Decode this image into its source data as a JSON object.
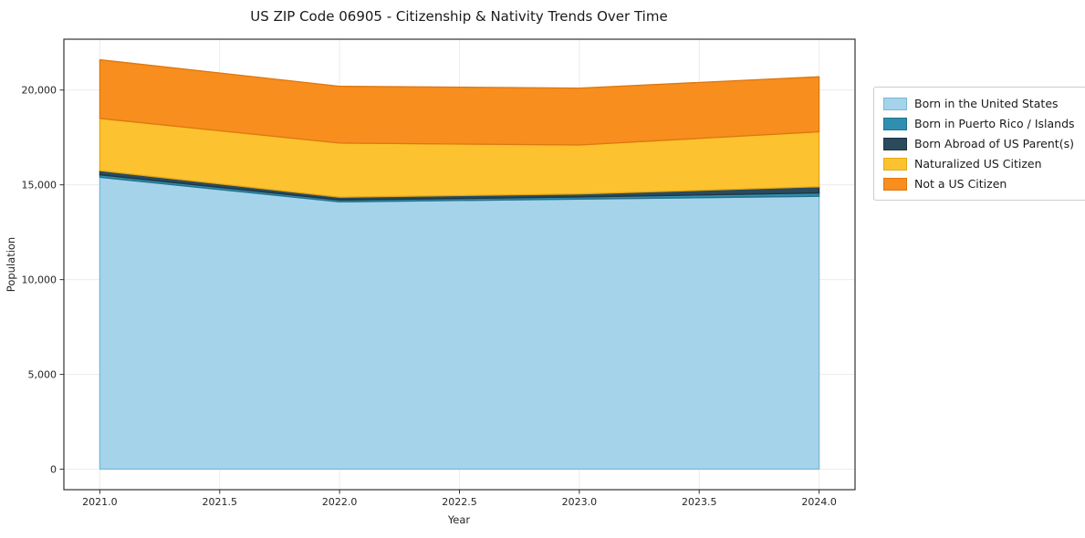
{
  "chart_data": {
    "type": "area",
    "title": "US ZIP Code 06905 - Citizenship & Nativity Trends Over Time",
    "xlabel": "Year",
    "ylabel": "Population",
    "x": [
      2021,
      2022,
      2023,
      2024
    ],
    "series": [
      {
        "name": "Born in the United States",
        "color": "#a5d3e9",
        "edge": "#79b8d9",
        "values": [
          15400,
          14100,
          14250,
          14400
        ]
      },
      {
        "name": "Born in Puerto Rico / Islands",
        "color": "#2f8fb0",
        "edge": "#23718d",
        "values": [
          130,
          100,
          110,
          170
        ]
      },
      {
        "name": "Born Abroad of US Parent(s)",
        "color": "#2b4a5c",
        "edge": "#1e3541",
        "values": [
          220,
          150,
          160,
          330
        ]
      },
      {
        "name": "Naturalized US Citizen",
        "color": "#fdc22f",
        "edge": "#e2a816",
        "values": [
          2750,
          2850,
          2580,
          2900
        ]
      },
      {
        "name": "Not a US Citizen",
        "color": "#f78e1e",
        "edge": "#dd7710",
        "values": [
          3100,
          3000,
          3000,
          2900
        ]
      }
    ],
    "xlim": [
      2020.85,
      2024.15
    ],
    "ylim": [
      -1080,
      22680
    ],
    "xticks": {
      "values": [
        2021,
        2021.5,
        2022,
        2022.5,
        2023,
        2023.5,
        2024
      ],
      "labels": [
        "2021.0",
        "2021.5",
        "2022.0",
        "2022.5",
        "2023.0",
        "2023.5",
        "2024.0"
      ]
    },
    "yticks": {
      "values": [
        0,
        5000,
        10000,
        15000,
        20000
      ],
      "labels": [
        "0",
        "5,000",
        "10,000",
        "15,000",
        "20,000"
      ]
    },
    "grid": true,
    "legend_position": "right"
  }
}
